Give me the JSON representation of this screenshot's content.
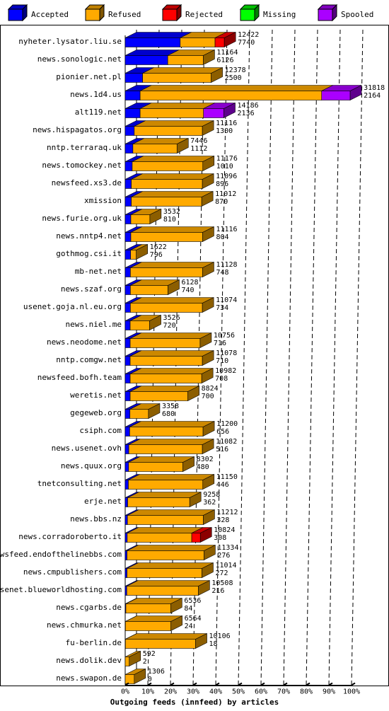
{
  "colors": {
    "accepted": "#0000ff",
    "refused": "#ffaa00",
    "rejected": "#ff0000",
    "missing": "#00ff00",
    "spooled": "#aa00ff",
    "background": "#ffffff",
    "grid": "#000000"
  },
  "chart_data": {
    "type": "bar",
    "orientation": "horizontal",
    "stacked": true,
    "three_d": true,
    "xlabel": "Outgoing feeds (innfeed) by articles",
    "ylabel": "",
    "xlim": [
      0,
      100
    ],
    "xunit": "% of articles offered",
    "grid": "vertical dashed",
    "legend_position": "top",
    "x_ticks": [
      "0%",
      "10%",
      "20%",
      "30%",
      "40%",
      "50%",
      "60%",
      "70%",
      "80%",
      "90%",
      "100%"
    ],
    "series_names": [
      "Accepted",
      "Refused",
      "Rejected",
      "Missing",
      "Spooled"
    ],
    "rows": [
      {
        "host": "nyheter.lysator.liu.se",
        "offered": "12422",
        "accepted": "7740",
        "pct": {
          "accepted": 24.3,
          "refused": 15.4,
          "rejected": 4.1,
          "missing": 0,
          "spooled": 0
        }
      },
      {
        "host": "news.sonologic.net",
        "offered": "11164",
        "accepted": "6126",
        "pct": {
          "accepted": 18.8,
          "refused": 15.7,
          "rejected": 0,
          "missing": 0,
          "spooled": 0
        }
      },
      {
        "host": "pionier.net.pl",
        "offered": "12378",
        "accepted": "2500",
        "pct": {
          "accepted": 7.7,
          "refused": 30.3,
          "rejected": 0,
          "missing": 0,
          "spooled": 0
        }
      },
      {
        "host": "news.1d4.us",
        "offered": "31818",
        "accepted": "2164",
        "pct": {
          "accepted": 6.6,
          "refused": 80.2,
          "rejected": 0,
          "missing": 0,
          "spooled": 12.6
        }
      },
      {
        "host": "alt119.net",
        "offered": "14186",
        "accepted": "2136",
        "pct": {
          "accepted": 6.6,
          "refused": 28.0,
          "rejected": 0,
          "missing": 0,
          "spooled": 9.0
        }
      },
      {
        "host": "news.hispagatos.org",
        "offered": "11116",
        "accepted": "1300",
        "pct": {
          "accepted": 4.0,
          "refused": 30.1,
          "rejected": 0,
          "missing": 0,
          "spooled": 0
        }
      },
      {
        "host": "nntp.terraraq.uk",
        "offered": "7446",
        "accepted": "1112",
        "pct": {
          "accepted": 3.4,
          "refused": 19.5,
          "rejected": 0,
          "missing": 0,
          "spooled": 0
        }
      },
      {
        "host": "news.tomockey.net",
        "offered": "11176",
        "accepted": "1010",
        "pct": {
          "accepted": 3.1,
          "refused": 31.2,
          "rejected": 0,
          "missing": 0,
          "spooled": 0
        }
      },
      {
        "host": "newsfeed.xs3.de",
        "offered": "11096",
        "accepted": "896",
        "pct": {
          "accepted": 2.7,
          "refused": 31.4,
          "rejected": 0,
          "missing": 0,
          "spooled": 0
        }
      },
      {
        "host": "xmission",
        "offered": "11012",
        "accepted": "870",
        "pct": {
          "accepted": 2.7,
          "refused": 31.1,
          "rejected": 0,
          "missing": 0,
          "spooled": 0
        }
      },
      {
        "host": "news.furie.org.uk",
        "offered": "3532",
        "accepted": "810",
        "pct": {
          "accepted": 2.5,
          "refused": 8.4,
          "rejected": 0,
          "missing": 0,
          "spooled": 0
        }
      },
      {
        "host": "news.nntp4.net",
        "offered": "11116",
        "accepted": "804",
        "pct": {
          "accepted": 2.5,
          "refused": 31.7,
          "rejected": 0,
          "missing": 0,
          "spooled": 0
        }
      },
      {
        "host": "gothmog.csi.it",
        "offered": "1622",
        "accepted": "796",
        "pct": {
          "accepted": 2.4,
          "refused": 2.5,
          "rejected": 0,
          "missing": 0,
          "spooled": 0
        }
      },
      {
        "host": "mb-net.net",
        "offered": "11128",
        "accepted": "748",
        "pct": {
          "accepted": 2.3,
          "refused": 31.9,
          "rejected": 0,
          "missing": 0,
          "spooled": 0
        }
      },
      {
        "host": "news.szaf.org",
        "offered": "6128",
        "accepted": "740",
        "pct": {
          "accepted": 2.3,
          "refused": 16.6,
          "rejected": 0,
          "missing": 0,
          "spooled": 0
        }
      },
      {
        "host": "usenet.goja.nl.eu.org",
        "offered": "11074",
        "accepted": "734",
        "pct": {
          "accepted": 2.3,
          "refused": 31.8,
          "rejected": 0,
          "missing": 0,
          "spooled": 0
        }
      },
      {
        "host": "news.niel.me",
        "offered": "3526",
        "accepted": "720",
        "pct": {
          "accepted": 2.2,
          "refused": 8.6,
          "rejected": 0,
          "missing": 0,
          "spooled": 0
        }
      },
      {
        "host": "news.neodome.net",
        "offered": "10756",
        "accepted": "716",
        "pct": {
          "accepted": 2.2,
          "refused": 30.9,
          "rejected": 0,
          "missing": 0,
          "spooled": 0
        }
      },
      {
        "host": "nntp.comgw.net",
        "offered": "11078",
        "accepted": "710",
        "pct": {
          "accepted": 2.2,
          "refused": 31.9,
          "rejected": 0,
          "missing": 0,
          "spooled": 0
        }
      },
      {
        "host": "newsfeed.bofh.team",
        "offered": "10982",
        "accepted": "708",
        "pct": {
          "accepted": 2.2,
          "refused": 31.6,
          "rejected": 0,
          "missing": 0,
          "spooled": 0
        }
      },
      {
        "host": "weretis.net",
        "offered": "8824",
        "accepted": "700",
        "pct": {
          "accepted": 2.2,
          "refused": 25.5,
          "rejected": 0,
          "missing": 0,
          "spooled": 0
        }
      },
      {
        "host": "gegeweb.org",
        "offered": "3358",
        "accepted": "680",
        "pct": {
          "accepted": 2.1,
          "refused": 8.2,
          "rejected": 0,
          "missing": 0,
          "spooled": 0
        }
      },
      {
        "host": "csiph.com",
        "offered": "11200",
        "accepted": "656",
        "pct": {
          "accepted": 2.0,
          "refused": 32.4,
          "rejected": 0,
          "missing": 0,
          "spooled": 0
        }
      },
      {
        "host": "news.usenet.ovh",
        "offered": "11082",
        "accepted": "516",
        "pct": {
          "accepted": 1.6,
          "refused": 32.5,
          "rejected": 0,
          "missing": 0,
          "spooled": 0
        }
      },
      {
        "host": "news.quux.org",
        "offered": "8302",
        "accepted": "480",
        "pct": {
          "accepted": 1.5,
          "refused": 24.0,
          "rejected": 0,
          "missing": 0,
          "spooled": 0
        }
      },
      {
        "host": "tnetconsulting.net",
        "offered": "11150",
        "accepted": "446",
        "pct": {
          "accepted": 1.4,
          "refused": 32.9,
          "rejected": 0,
          "missing": 0,
          "spooled": 0
        }
      },
      {
        "host": "erje.net",
        "offered": "9258",
        "accepted": "362",
        "pct": {
          "accepted": 1.1,
          "refused": 27.4,
          "rejected": 0,
          "missing": 0,
          "spooled": 0
        }
      },
      {
        "host": "news.bbs.nz",
        "offered": "11212",
        "accepted": "328",
        "pct": {
          "accepted": 1.0,
          "refused": 33.5,
          "rejected": 0,
          "missing": 0,
          "spooled": 0
        }
      },
      {
        "host": "news.corradoroberto.it",
        "offered": "10824",
        "accepted": "308",
        "pct": {
          "accepted": 0.9,
          "refused": 28.5,
          "rejected": 3.8,
          "missing": 0,
          "spooled": 0
        }
      },
      {
        "host": "newsfeed.endofthelinebbs.com",
        "offered": "11334",
        "accepted": "276",
        "pct": {
          "accepted": 0.8,
          "refused": 34.0,
          "rejected": 0,
          "missing": 0,
          "spooled": 0
        }
      },
      {
        "host": "news.cmpublishers.com",
        "offered": "11014",
        "accepted": "272",
        "pct": {
          "accepted": 0.8,
          "refused": 33.1,
          "rejected": 0,
          "missing": 0,
          "spooled": 0
        }
      },
      {
        "host": "usenet.blueworldhosting.com",
        "offered": "10508",
        "accepted": "216",
        "pct": {
          "accepted": 0.7,
          "refused": 31.6,
          "rejected": 0,
          "missing": 0,
          "spooled": 0
        }
      },
      {
        "host": "news.cgarbs.de",
        "offered": "6536",
        "accepted": "84",
        "pct": {
          "accepted": 0.3,
          "refused": 19.8,
          "rejected": 0,
          "missing": 0,
          "spooled": 0
        }
      },
      {
        "host": "news.chmurka.net",
        "offered": "6564",
        "accepted": "24",
        "pct": {
          "accepted": 0.1,
          "refused": 20.1,
          "rejected": 0,
          "missing": 0,
          "spooled": 0
        }
      },
      {
        "host": "fu-berlin.de",
        "offered": "10106",
        "accepted": "18",
        "pct": {
          "accepted": 0.1,
          "refused": 31.0,
          "rejected": 0,
          "missing": 0,
          "spooled": 0
        }
      },
      {
        "host": "news.dolik.dev",
        "offered": "592",
        "accepted": "2",
        "pct": {
          "accepted": 0.0,
          "refused": 1.8,
          "rejected": 0,
          "missing": 0,
          "spooled": 0
        }
      },
      {
        "host": "news.swapon.de",
        "offered": "1306",
        "accepted": "0",
        "pct": {
          "accepted": 0.0,
          "refused": 4.0,
          "rejected": 0,
          "missing": 0,
          "spooled": 0
        }
      }
    ]
  }
}
